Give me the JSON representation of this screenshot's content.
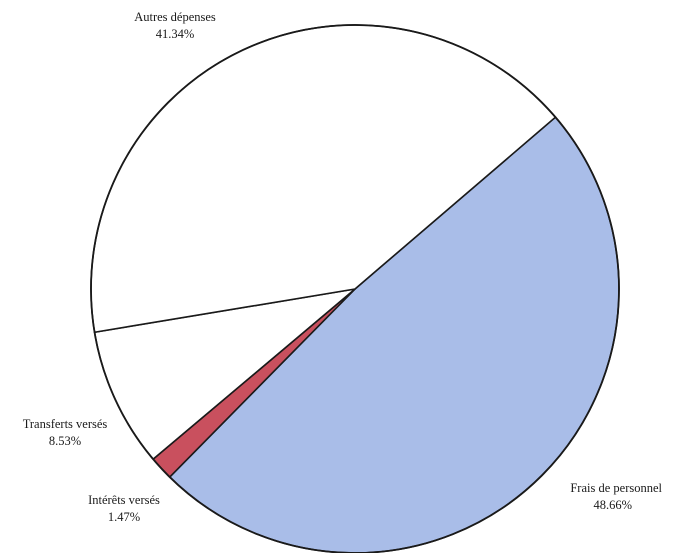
{
  "chart_data": {
    "type": "pie",
    "title": "",
    "slices": [
      {
        "label": "Frais de personnel",
        "value": 48.66,
        "value_text": "48.66%",
        "color": "#a9bde8",
        "anchor": "end"
      },
      {
        "label": "Intérêts versés",
        "value": 1.47,
        "value_text": "1.47%",
        "color": "#c9505e",
        "anchor": "middle"
      },
      {
        "label": "Transferts versés",
        "value": 8.53,
        "value_text": "8.53%",
        "color": "#ffffff",
        "anchor": "middle"
      },
      {
        "label": "Autres dépenses",
        "value": 41.34,
        "value_text": "41.34%",
        "color": "#ffffff",
        "anchor": "middle"
      }
    ],
    "start_angle_deg": -40.6,
    "direction": "clockwise",
    "legend": "none"
  }
}
